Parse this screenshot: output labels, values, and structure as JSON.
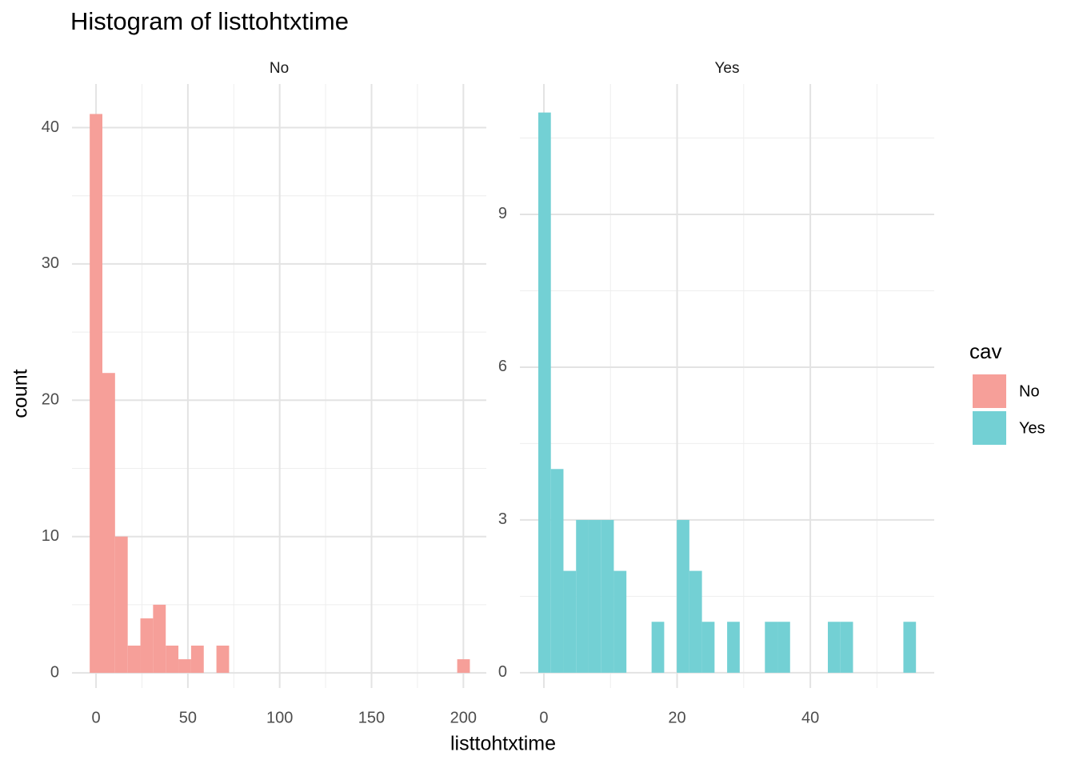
{
  "chart_data": {
    "type": "histogram",
    "title": "Histogram of listtohtxtime",
    "xlabel": "listtohtxtime",
    "ylabel": "count",
    "legend_title": "cav",
    "grid": true,
    "facets": [
      {
        "name": "No",
        "color": "#f69f99",
        "bins": [
          -3.45,
          3.45,
          10.35,
          17.25,
          24.15,
          31.05,
          37.95,
          44.85,
          51.75,
          58.65,
          65.55,
          72.45,
          79.35,
          86.25,
          93.15,
          100.05,
          106.95,
          113.85,
          120.75,
          127.65,
          134.55,
          141.45,
          148.35,
          155.25,
          162.15,
          169.05,
          175.95,
          182.85,
          189.75,
          196.65,
          203.55
        ],
        "counts": [
          41,
          22,
          10,
          2,
          4,
          5,
          2,
          1,
          2,
          0,
          2,
          0,
          0,
          0,
          0,
          0,
          0,
          0,
          0,
          0,
          0,
          0,
          0,
          0,
          0,
          0,
          0,
          0,
          0,
          1
        ],
        "xlim": [
          -13.1,
          212.5
        ],
        "ylim": [
          -1.11,
          43.2
        ],
        "xticks": [
          0,
          50,
          100,
          150,
          200
        ],
        "yticks": [
          0,
          10,
          20,
          30,
          40
        ]
      },
      {
        "name": "Yes",
        "color": "#73d0d4",
        "bins": [
          -0.84,
          1.05,
          2.94,
          4.83,
          6.72,
          8.61,
          10.5,
          12.39,
          14.28,
          16.17,
          18.06,
          19.95,
          21.84,
          23.73,
          25.62,
          27.51,
          29.4,
          31.29,
          33.18,
          35.07,
          36.96,
          38.85,
          40.74,
          42.63,
          44.52,
          46.41,
          48.3,
          50.19,
          52.08,
          53.97,
          55.86
        ],
        "counts": [
          11,
          4,
          2,
          3,
          3,
          3,
          2,
          0,
          0,
          1,
          0,
          3,
          2,
          1,
          0,
          1,
          0,
          0,
          1,
          1,
          0,
          0,
          0,
          1,
          1,
          0,
          0,
          0,
          0,
          1
        ],
        "xlim": [
          -3.6,
          58.6
        ],
        "ylim": [
          -0.3,
          11.56
        ],
        "xticks": [
          0,
          20,
          40
        ],
        "yticks": [
          0,
          3,
          6,
          9
        ]
      }
    ]
  }
}
